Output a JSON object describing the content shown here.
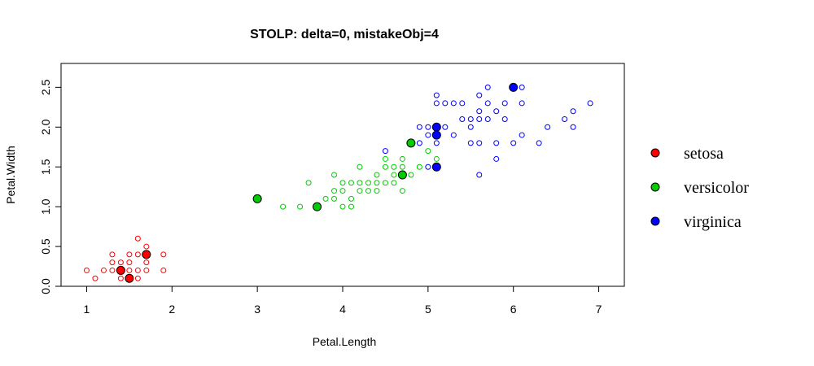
{
  "chart_data": {
    "type": "scatter",
    "title": "STOLP: delta=0, mistakeObj=4",
    "xlabel": "Petal.Length",
    "ylabel": "Petal.Width",
    "xlim": [
      0.7,
      7.3
    ],
    "ylim": [
      0.0,
      2.8
    ],
    "x_ticks": [
      "1",
      "2",
      "3",
      "4",
      "5",
      "6",
      "7"
    ],
    "y_ticks": [
      "0.0",
      "0.5",
      "1.0",
      "1.5",
      "2.0",
      "2.5"
    ],
    "grid": false,
    "legend_position": "right",
    "series": [
      {
        "name": "setosa",
        "color": "#ff0000",
        "points": [
          [
            1.0,
            0.2
          ],
          [
            1.1,
            0.1
          ],
          [
            1.2,
            0.2
          ],
          [
            1.3,
            0.2
          ],
          [
            1.3,
            0.3
          ],
          [
            1.3,
            0.4
          ],
          [
            1.4,
            0.1
          ],
          [
            1.4,
            0.2
          ],
          [
            1.4,
            0.3
          ],
          [
            1.5,
            0.2
          ],
          [
            1.5,
            0.3
          ],
          [
            1.5,
            0.4
          ],
          [
            1.6,
            0.2
          ],
          [
            1.6,
            0.4
          ],
          [
            1.6,
            0.6
          ],
          [
            1.7,
            0.3
          ],
          [
            1.7,
            0.5
          ],
          [
            1.7,
            0.2
          ],
          [
            1.9,
            0.2
          ],
          [
            1.9,
            0.4
          ],
          [
            1.6,
            0.1
          ]
        ],
        "prototypes": [
          [
            1.4,
            0.2
          ],
          [
            1.5,
            0.1
          ],
          [
            1.7,
            0.4
          ]
        ]
      },
      {
        "name": "versicolor",
        "color": "#00cc00",
        "points": [
          [
            3.3,
            1.0
          ],
          [
            3.5,
            1.0
          ],
          [
            3.6,
            1.3
          ],
          [
            3.8,
            1.1
          ],
          [
            3.9,
            1.1
          ],
          [
            3.9,
            1.2
          ],
          [
            3.9,
            1.4
          ],
          [
            4.0,
            1.0
          ],
          [
            4.0,
            1.2
          ],
          [
            4.0,
            1.3
          ],
          [
            4.1,
            1.0
          ],
          [
            4.1,
            1.3
          ],
          [
            4.2,
            1.2
          ],
          [
            4.2,
            1.3
          ],
          [
            4.2,
            1.5
          ],
          [
            4.3,
            1.3
          ],
          [
            4.4,
            1.2
          ],
          [
            4.4,
            1.3
          ],
          [
            4.4,
            1.4
          ],
          [
            4.5,
            1.3
          ],
          [
            4.5,
            1.5
          ],
          [
            4.5,
            1.6
          ],
          [
            4.6,
            1.3
          ],
          [
            4.6,
            1.4
          ],
          [
            4.6,
            1.5
          ],
          [
            4.7,
            1.2
          ],
          [
            4.7,
            1.5
          ],
          [
            4.7,
            1.6
          ],
          [
            4.8,
            1.4
          ],
          [
            4.9,
            1.5
          ],
          [
            5.0,
            1.7
          ],
          [
            5.1,
            1.6
          ],
          [
            4.1,
            1.1
          ],
          [
            4.3,
            1.2
          ],
          [
            5.1,
            1.5
          ]
        ],
        "prototypes": [
          [
            3.0,
            1.1
          ],
          [
            3.7,
            1.0
          ],
          [
            4.7,
            1.4
          ],
          [
            4.8,
            1.8
          ]
        ]
      },
      {
        "name": "virginica",
        "color": "#0000ff",
        "points": [
          [
            4.5,
            1.7
          ],
          [
            4.8,
            1.8
          ],
          [
            4.9,
            1.8
          ],
          [
            4.9,
            2.0
          ],
          [
            5.0,
            1.5
          ],
          [
            5.0,
            1.9
          ],
          [
            5.0,
            2.0
          ],
          [
            5.1,
            1.8
          ],
          [
            5.1,
            2.0
          ],
          [
            5.1,
            2.3
          ],
          [
            5.1,
            2.4
          ],
          [
            5.2,
            2.0
          ],
          [
            5.2,
            2.3
          ],
          [
            5.3,
            1.9
          ],
          [
            5.3,
            2.3
          ],
          [
            5.4,
            2.1
          ],
          [
            5.4,
            2.3
          ],
          [
            5.5,
            1.8
          ],
          [
            5.5,
            2.1
          ],
          [
            5.6,
            1.4
          ],
          [
            5.6,
            1.8
          ],
          [
            5.6,
            2.1
          ],
          [
            5.6,
            2.2
          ],
          [
            5.6,
            2.4
          ],
          [
            5.7,
            2.1
          ],
          [
            5.7,
            2.3
          ],
          [
            5.7,
            2.5
          ],
          [
            5.8,
            1.6
          ],
          [
            5.8,
            1.8
          ],
          [
            5.8,
            2.2
          ],
          [
            5.9,
            2.1
          ],
          [
            5.9,
            2.3
          ],
          [
            6.0,
            1.8
          ],
          [
            6.0,
            2.5
          ],
          [
            6.1,
            1.9
          ],
          [
            6.1,
            2.3
          ],
          [
            6.1,
            2.5
          ],
          [
            6.3,
            1.8
          ],
          [
            6.4,
            2.0
          ],
          [
            6.6,
            2.1
          ],
          [
            6.7,
            2.0
          ],
          [
            6.7,
            2.2
          ],
          [
            6.9,
            2.3
          ],
          [
            5.5,
            2.0
          ]
        ],
        "prototypes": [
          [
            5.1,
            1.5
          ],
          [
            5.1,
            1.9
          ],
          [
            5.1,
            2.0
          ],
          [
            6.0,
            2.5
          ]
        ]
      }
    ]
  }
}
